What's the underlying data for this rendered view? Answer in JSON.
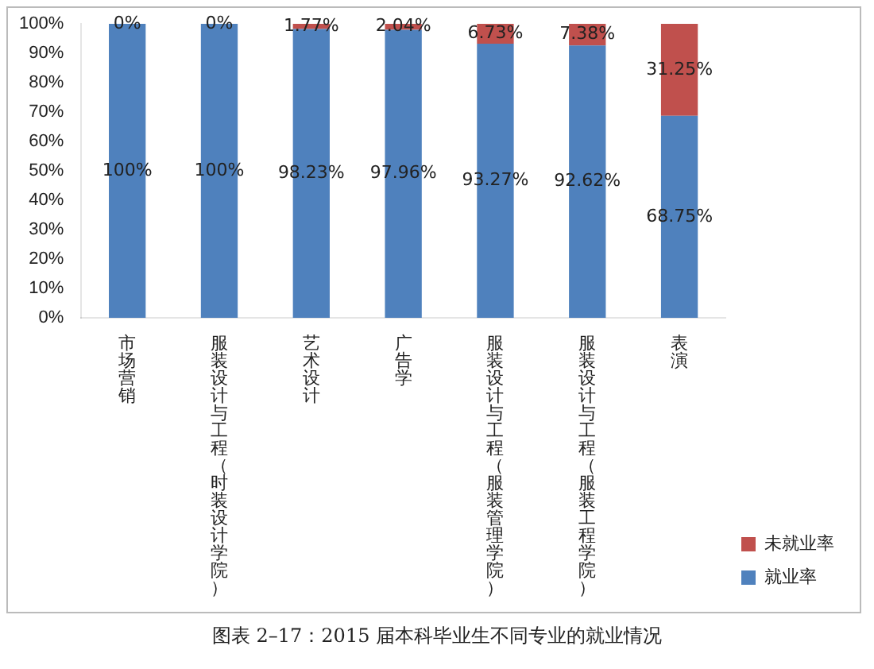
{
  "chart_data": {
    "type": "bar",
    "stacked": true,
    "categories": [
      "市场营销",
      "服装设计与工程（时装设计学院）",
      "艺术设计",
      "广告学",
      "服装设计与工程（服装管理学院）",
      "服装设计与工程（服装工程学院）",
      "表演"
    ],
    "series": [
      {
        "name": "就业率",
        "color": "#4f81bd",
        "values": [
          100,
          100,
          98.23,
          97.96,
          93.27,
          92.62,
          68.75
        ],
        "value_labels": [
          "100%",
          "100%",
          "98.23%",
          "97.96%",
          "93.27%",
          "92.62%",
          "68.75%"
        ]
      },
      {
        "name": "未就业率",
        "color": "#c0504d",
        "values": [
          0,
          0,
          1.77,
          2.04,
          6.73,
          7.38,
          31.25
        ],
        "value_labels": [
          "0%",
          "0%",
          "1.77%",
          "2.04%",
          "6.73%",
          "7.38%",
          "31.25%"
        ]
      }
    ],
    "ylim": [
      0,
      100
    ],
    "yticks": [
      {
        "value": 0,
        "label": "0%"
      },
      {
        "value": 10,
        "label": "10%"
      },
      {
        "value": 20,
        "label": "20%"
      },
      {
        "value": 30,
        "label": "30%"
      },
      {
        "value": 40,
        "label": "40%"
      },
      {
        "value": 50,
        "label": "50%"
      },
      {
        "value": 60,
        "label": "60%"
      },
      {
        "value": 70,
        "label": "70%"
      },
      {
        "value": 80,
        "label": "80%"
      },
      {
        "value": 90,
        "label": "90%"
      },
      {
        "value": 100,
        "label": "100%"
      }
    ],
    "grid": false,
    "legend": "right",
    "annotations": [
      "图表 2–17：2015 届本科毕业生不同专业的就业情况"
    ]
  }
}
